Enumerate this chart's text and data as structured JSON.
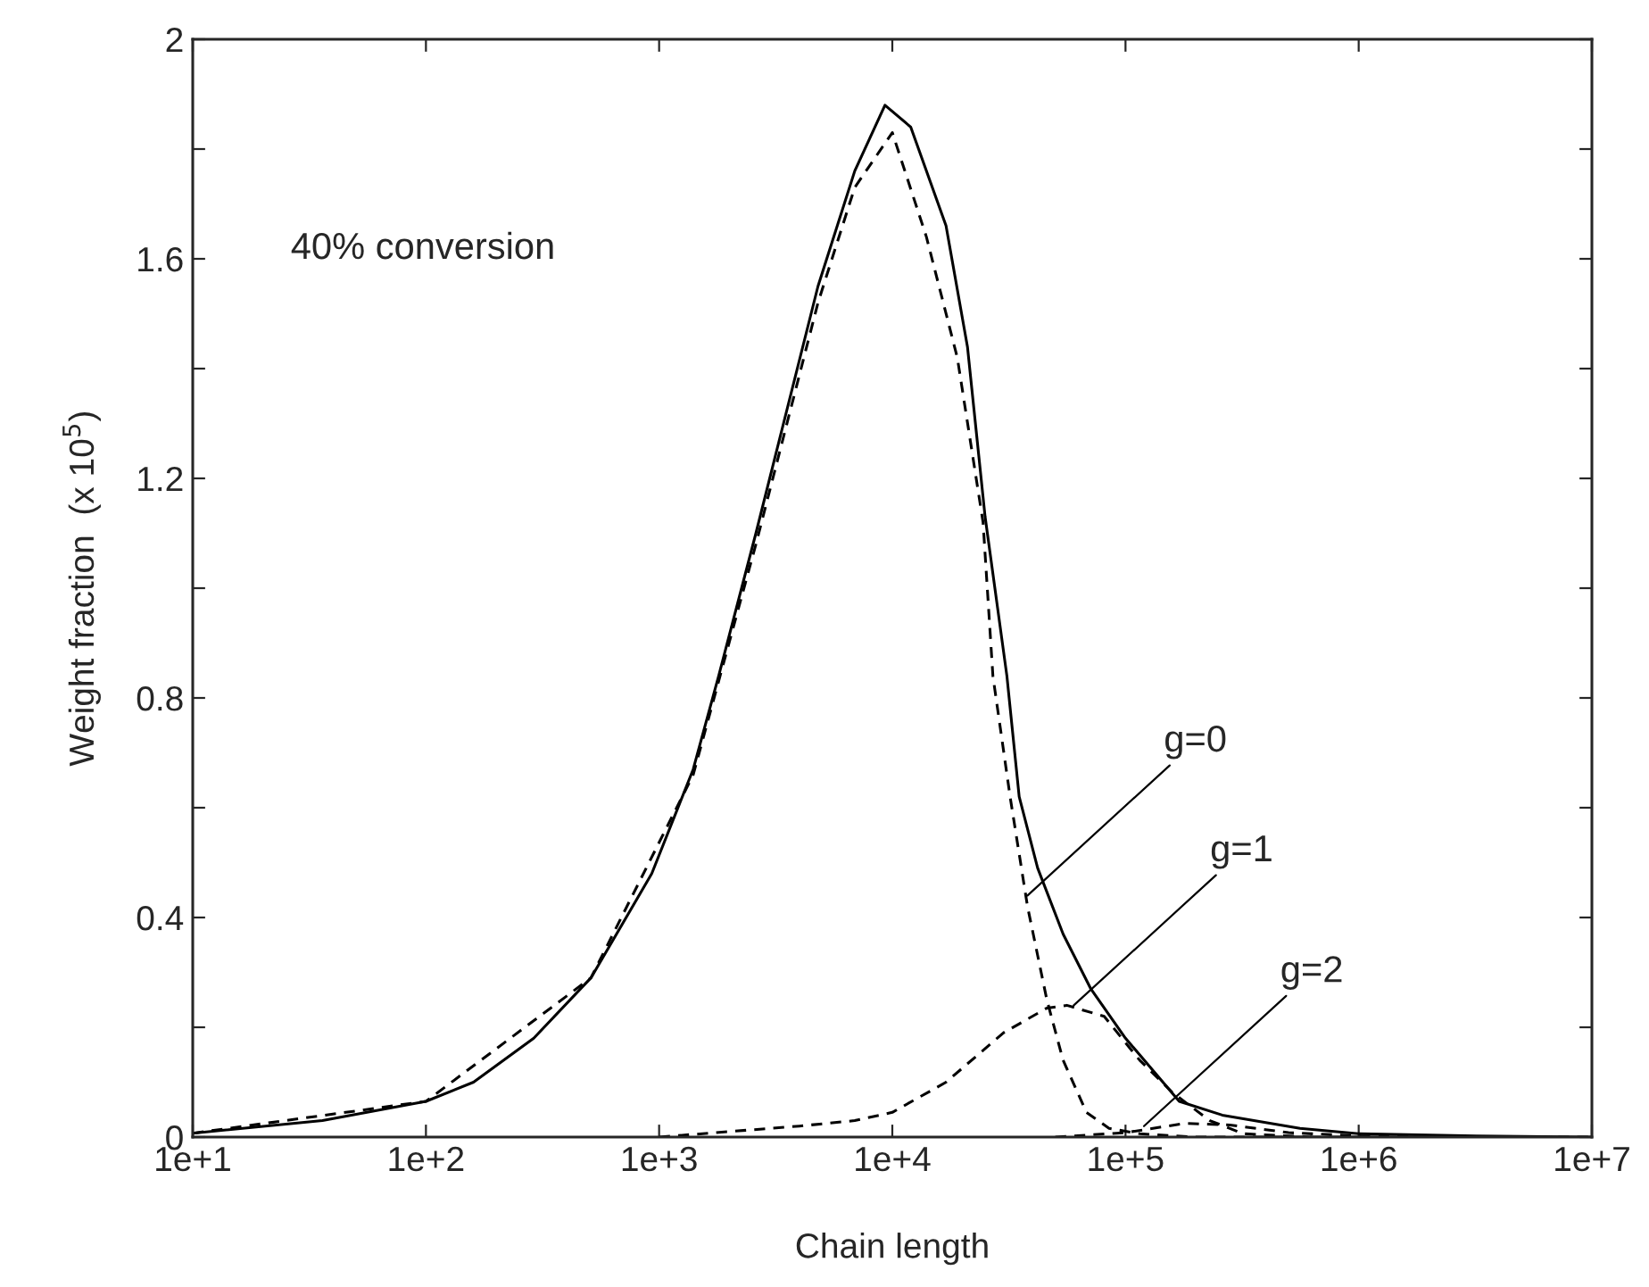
{
  "chart_data": {
    "type": "line",
    "xlabel": "Chain length",
    "ylabel": "Weight fraction  (x 10$^{5}$)",
    "log": "x",
    "xlim": [
      10,
      10000000
    ],
    "xticks": [
      {
        "value": 10,
        "label": "1e+1"
      },
      {
        "value": 100,
        "label": "1e+2"
      },
      {
        "value": 1000,
        "label": "1e+3"
      },
      {
        "value": 10000,
        "label": "1e+4"
      },
      {
        "value": 100000,
        "label": "1e+5"
      },
      {
        "value": 1000000,
        "label": "1e+6"
      },
      {
        "value": 10000000,
        "label": "1e+7"
      }
    ],
    "ylim": [
      0,
      2
    ],
    "yticks": [
      0,
      {
        "value": 0.2,
        "label": null
      },
      0.4,
      {
        "value": 0.6,
        "label": null
      },
      0.8,
      {
        "value": 1.0,
        "label": null
      },
      1.2,
      {
        "value": 1.4,
        "label": null
      },
      1.6,
      {
        "value": 1.8,
        "label": null
      },
      2
    ],
    "grid": false,
    "legend": false,
    "series": [
      {
        "color": "#000000",
        "line_style": "solid",
        "x": [
          10,
          36,
          100,
          160,
          290,
          510,
          930,
          1400,
          1800,
          2600,
          4800,
          6900,
          9300,
          12000,
          17000,
          21000,
          25000,
          31000,
          35000,
          42000,
          54000,
          71000,
          100000,
          170000,
          260000,
          560000,
          1000000,
          3200000,
          10000000
        ],
        "values": [
          0.007,
          0.03,
          0.065,
          0.1,
          0.18,
          0.29,
          0.48,
          0.67,
          0.84,
          1.1,
          1.55,
          1.76,
          1.88,
          1.84,
          1.66,
          1.44,
          1.13,
          0.84,
          0.62,
          0.49,
          0.37,
          0.27,
          0.18,
          0.065,
          0.04,
          0.016,
          0.006,
          0.002,
          0
        ]
      },
      {
        "color": "#000000",
        "line_style": "dashed",
        "x": [
          10,
          100,
          510,
          1400,
          2600,
          4800,
          6900,
          10000,
          14000,
          19000,
          24500,
          27000,
          32000,
          38000,
          46000,
          54000,
          68000,
          85000,
          115000,
          200000,
          10000000
        ],
        "values": [
          0.007,
          0.065,
          0.29,
          0.66,
          1.08,
          1.52,
          1.73,
          1.83,
          1.64,
          1.42,
          1.12,
          0.84,
          0.62,
          0.42,
          0.25,
          0.14,
          0.045,
          0.016,
          0.006,
          0,
          0
        ]
      },
      {
        "color": "#000000",
        "line_style": "dashed",
        "x": [
          1000,
          4000,
          6900,
          10000,
          17000,
          30000,
          46000,
          56000,
          81000,
          115000,
          160000,
          230000,
          320000,
          630000
        ],
        "values": [
          0,
          0.02,
          0.03,
          0.045,
          0.1,
          0.19,
          0.235,
          0.24,
          0.22,
          0.14,
          0.08,
          0.03,
          0.006,
          0
        ]
      },
      {
        "color": "#000000",
        "line_style": "dashed",
        "x": [
          50000,
          100000,
          180000,
          280000,
          500000,
          1000000,
          2000000
        ],
        "values": [
          0,
          0.008,
          0.025,
          0.022,
          0.008,
          0.002,
          0
        ]
      }
    ],
    "annotations": [
      "40% conversion",
      {
        "text": "g=0",
        "x": 38000,
        "y": 0.44
      },
      {
        "text": "g=1",
        "x": 60000,
        "y": 0.24
      },
      {
        "text": "g=2",
        "x": 120000,
        "y": 0.02
      }
    ]
  }
}
